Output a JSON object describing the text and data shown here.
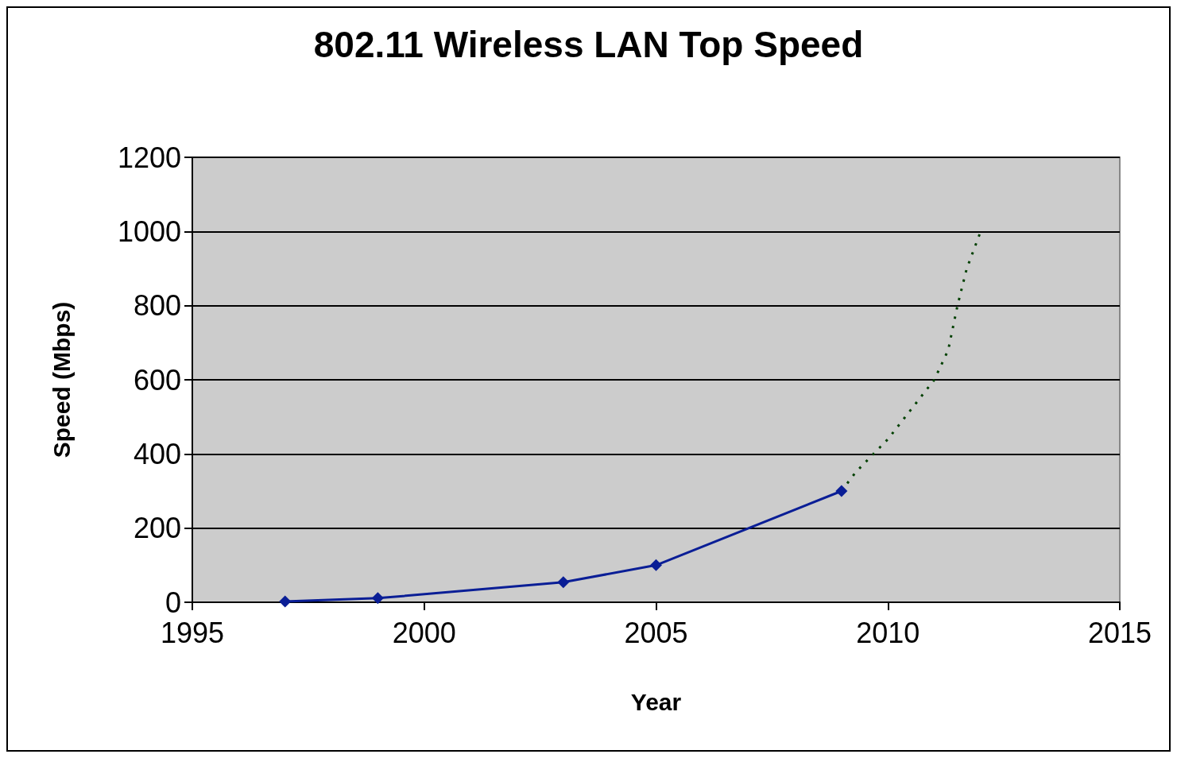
{
  "chart_data": {
    "type": "line",
    "title": "802.11 Wireless LAN Top Speed",
    "xlabel": "Year",
    "ylabel": "Speed (Mbps)",
    "xlim": [
      1995,
      2015
    ],
    "xticks": [
      1995,
      2000,
      2005,
      2010,
      2015
    ],
    "ylim": [
      0,
      1200
    ],
    "yticks": [
      0,
      200,
      400,
      600,
      800,
      1000,
      1200
    ],
    "grid": "y",
    "series": [
      {
        "color": "#0a1e96",
        "x": [
          1997,
          1999,
          2003,
          2005,
          2009
        ],
        "values": [
          2,
          11,
          54,
          100,
          300
        ],
        "marker": "diamond",
        "line_style": "solid"
      },
      {
        "color": "#004000",
        "x": [
          2009,
          2009.3,
          2010,
          2010.5,
          2011,
          2011.3,
          2011.5,
          2011.7,
          2012
        ],
        "values": [
          300,
          350,
          440,
          520,
          600,
          680,
          800,
          900,
          1000
        ],
        "marker": "none",
        "line_style": "dotted"
      }
    ]
  }
}
